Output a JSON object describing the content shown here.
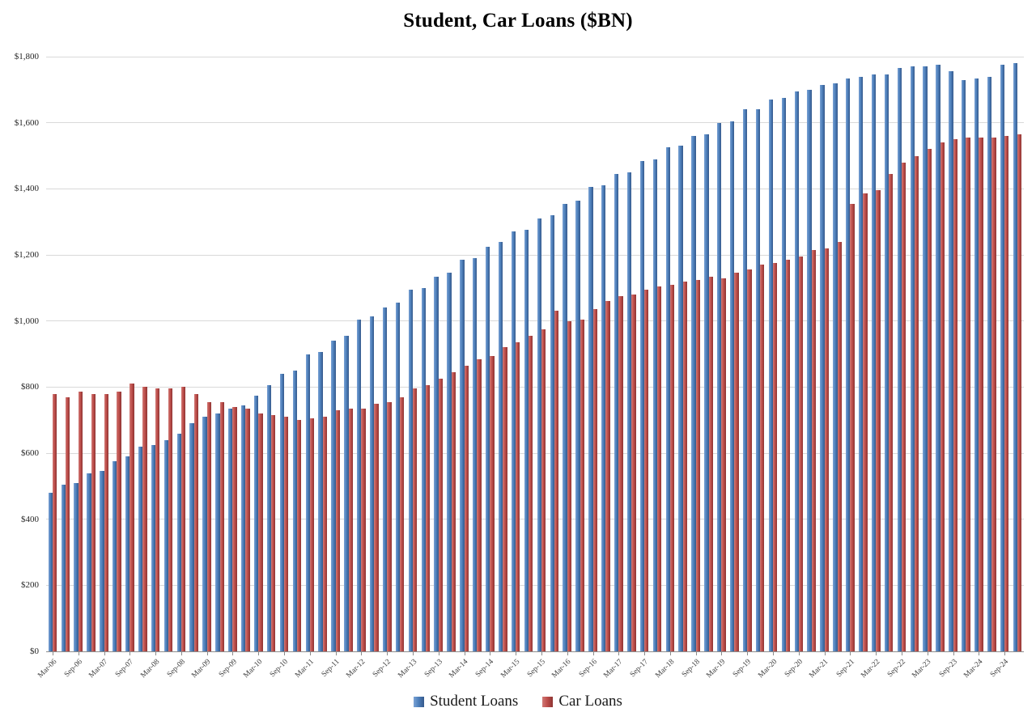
{
  "chart_data": {
    "type": "bar",
    "title": "Student, Car Loans ($BN)",
    "legend_position": "bottom",
    "grid": true,
    "ylim": [
      0,
      1800
    ],
    "y_tick_step": 200,
    "y_ticks": [
      {
        "value": 0,
        "label": "$0"
      },
      {
        "value": 200,
        "label": "$200"
      },
      {
        "value": 400,
        "label": "$400"
      },
      {
        "value": 600,
        "label": "$600"
      },
      {
        "value": 800,
        "label": "$800"
      },
      {
        "value": 1000,
        "label": "$1,000"
      },
      {
        "value": 1200,
        "label": "$1,200"
      },
      {
        "value": 1400,
        "label": "$1,400"
      },
      {
        "value": 1600,
        "label": "$1,600"
      },
      {
        "value": 1800,
        "label": "$1,800"
      }
    ],
    "x_label_every": 2,
    "x_tick_labels": [
      "Mar-06",
      "Sep-06",
      "Mar-07",
      "Sep-07",
      "Mar-08",
      "Sep-08",
      "Mar-09",
      "Sep-09",
      "Mar-10",
      "Sep-10",
      "Mar-11",
      "Sep-11",
      "Mar-12",
      "Sep-12",
      "Mar-13",
      "Sep-13",
      "Mar-14",
      "Sep-14",
      "Mar-15",
      "Sep-15",
      "Mar-16",
      "Sep-16",
      "Mar-17",
      "Sep-17",
      "Mar-18",
      "Sep-18",
      "Mar-19",
      "Sep-19",
      "Mar-20",
      "Sep-20",
      "Mar-21",
      "Sep-21",
      "Mar-22",
      "Sep-22",
      "Mar-23",
      "Sep-23",
      "Mar-24",
      "Sep-24"
    ],
    "categories": [
      "Mar-06",
      "Jun-06",
      "Sep-06",
      "Dec-06",
      "Mar-07",
      "Jun-07",
      "Sep-07",
      "Dec-07",
      "Mar-08",
      "Jun-08",
      "Sep-08",
      "Dec-08",
      "Mar-09",
      "Jun-09",
      "Sep-09",
      "Dec-09",
      "Mar-10",
      "Jun-10",
      "Sep-10",
      "Dec-10",
      "Mar-11",
      "Jun-11",
      "Sep-11",
      "Dec-11",
      "Mar-12",
      "Jun-12",
      "Sep-12",
      "Dec-12",
      "Mar-13",
      "Jun-13",
      "Sep-13",
      "Dec-13",
      "Mar-14",
      "Jun-14",
      "Sep-14",
      "Dec-14",
      "Mar-15",
      "Jun-15",
      "Sep-15",
      "Dec-15",
      "Mar-16",
      "Jun-16",
      "Sep-16",
      "Dec-16",
      "Mar-17",
      "Jun-17",
      "Sep-17",
      "Dec-17",
      "Mar-18",
      "Jun-18",
      "Sep-18",
      "Dec-18",
      "Mar-19",
      "Jun-19",
      "Sep-19",
      "Dec-19",
      "Mar-20",
      "Jun-20",
      "Sep-20",
      "Dec-20",
      "Mar-21",
      "Jun-21",
      "Sep-21",
      "Dec-21",
      "Mar-22",
      "Jun-22",
      "Sep-22",
      "Dec-22",
      "Mar-23",
      "Jun-23",
      "Sep-23",
      "Dec-23",
      "Mar-24",
      "Jun-24",
      "Sep-24",
      "Dec-24"
    ],
    "series": [
      {
        "name": "Student Loans",
        "color": "#4F81BD",
        "values": [
          480,
          505,
          510,
          540,
          545,
          575,
          590,
          620,
          625,
          640,
          660,
          690,
          710,
          720,
          735,
          745,
          775,
          805,
          840,
          850,
          900,
          905,
          940,
          955,
          1005,
          1015,
          1040,
          1055,
          1095,
          1100,
          1135,
          1145,
          1185,
          1190,
          1225,
          1240,
          1270,
          1275,
          1310,
          1320,
          1355,
          1365,
          1405,
          1410,
          1445,
          1450,
          1485,
          1490,
          1525,
          1530,
          1560,
          1565,
          1600,
          1605,
          1640,
          1640,
          1670,
          1675,
          1695,
          1700,
          1715,
          1720,
          1735,
          1740,
          1745,
          1745,
          1765,
          1770,
          1770,
          1775,
          1755,
          1730,
          1735,
          1740,
          1775,
          1780
        ]
      },
      {
        "name": "Car Loans",
        "color": "#C0504D",
        "values": [
          780,
          770,
          785,
          780,
          780,
          785,
          810,
          800,
          795,
          795,
          800,
          780,
          755,
          755,
          740,
          735,
          720,
          715,
          710,
          700,
          705,
          710,
          730,
          735,
          735,
          750,
          755,
          770,
          795,
          805,
          825,
          845,
          865,
          885,
          895,
          920,
          935,
          955,
          975,
          1030,
          1000,
          1005,
          1035,
          1060,
          1075,
          1080,
          1095,
          1105,
          1110,
          1120,
          1125,
          1135,
          1130,
          1145,
          1155,
          1170,
          1175,
          1185,
          1195,
          1215,
          1220,
          1240,
          1355,
          1385,
          1395,
          1445,
          1480,
          1500,
          1520,
          1540,
          1550,
          1555,
          1555,
          1555,
          1560,
          1565
        ]
      }
    ]
  }
}
